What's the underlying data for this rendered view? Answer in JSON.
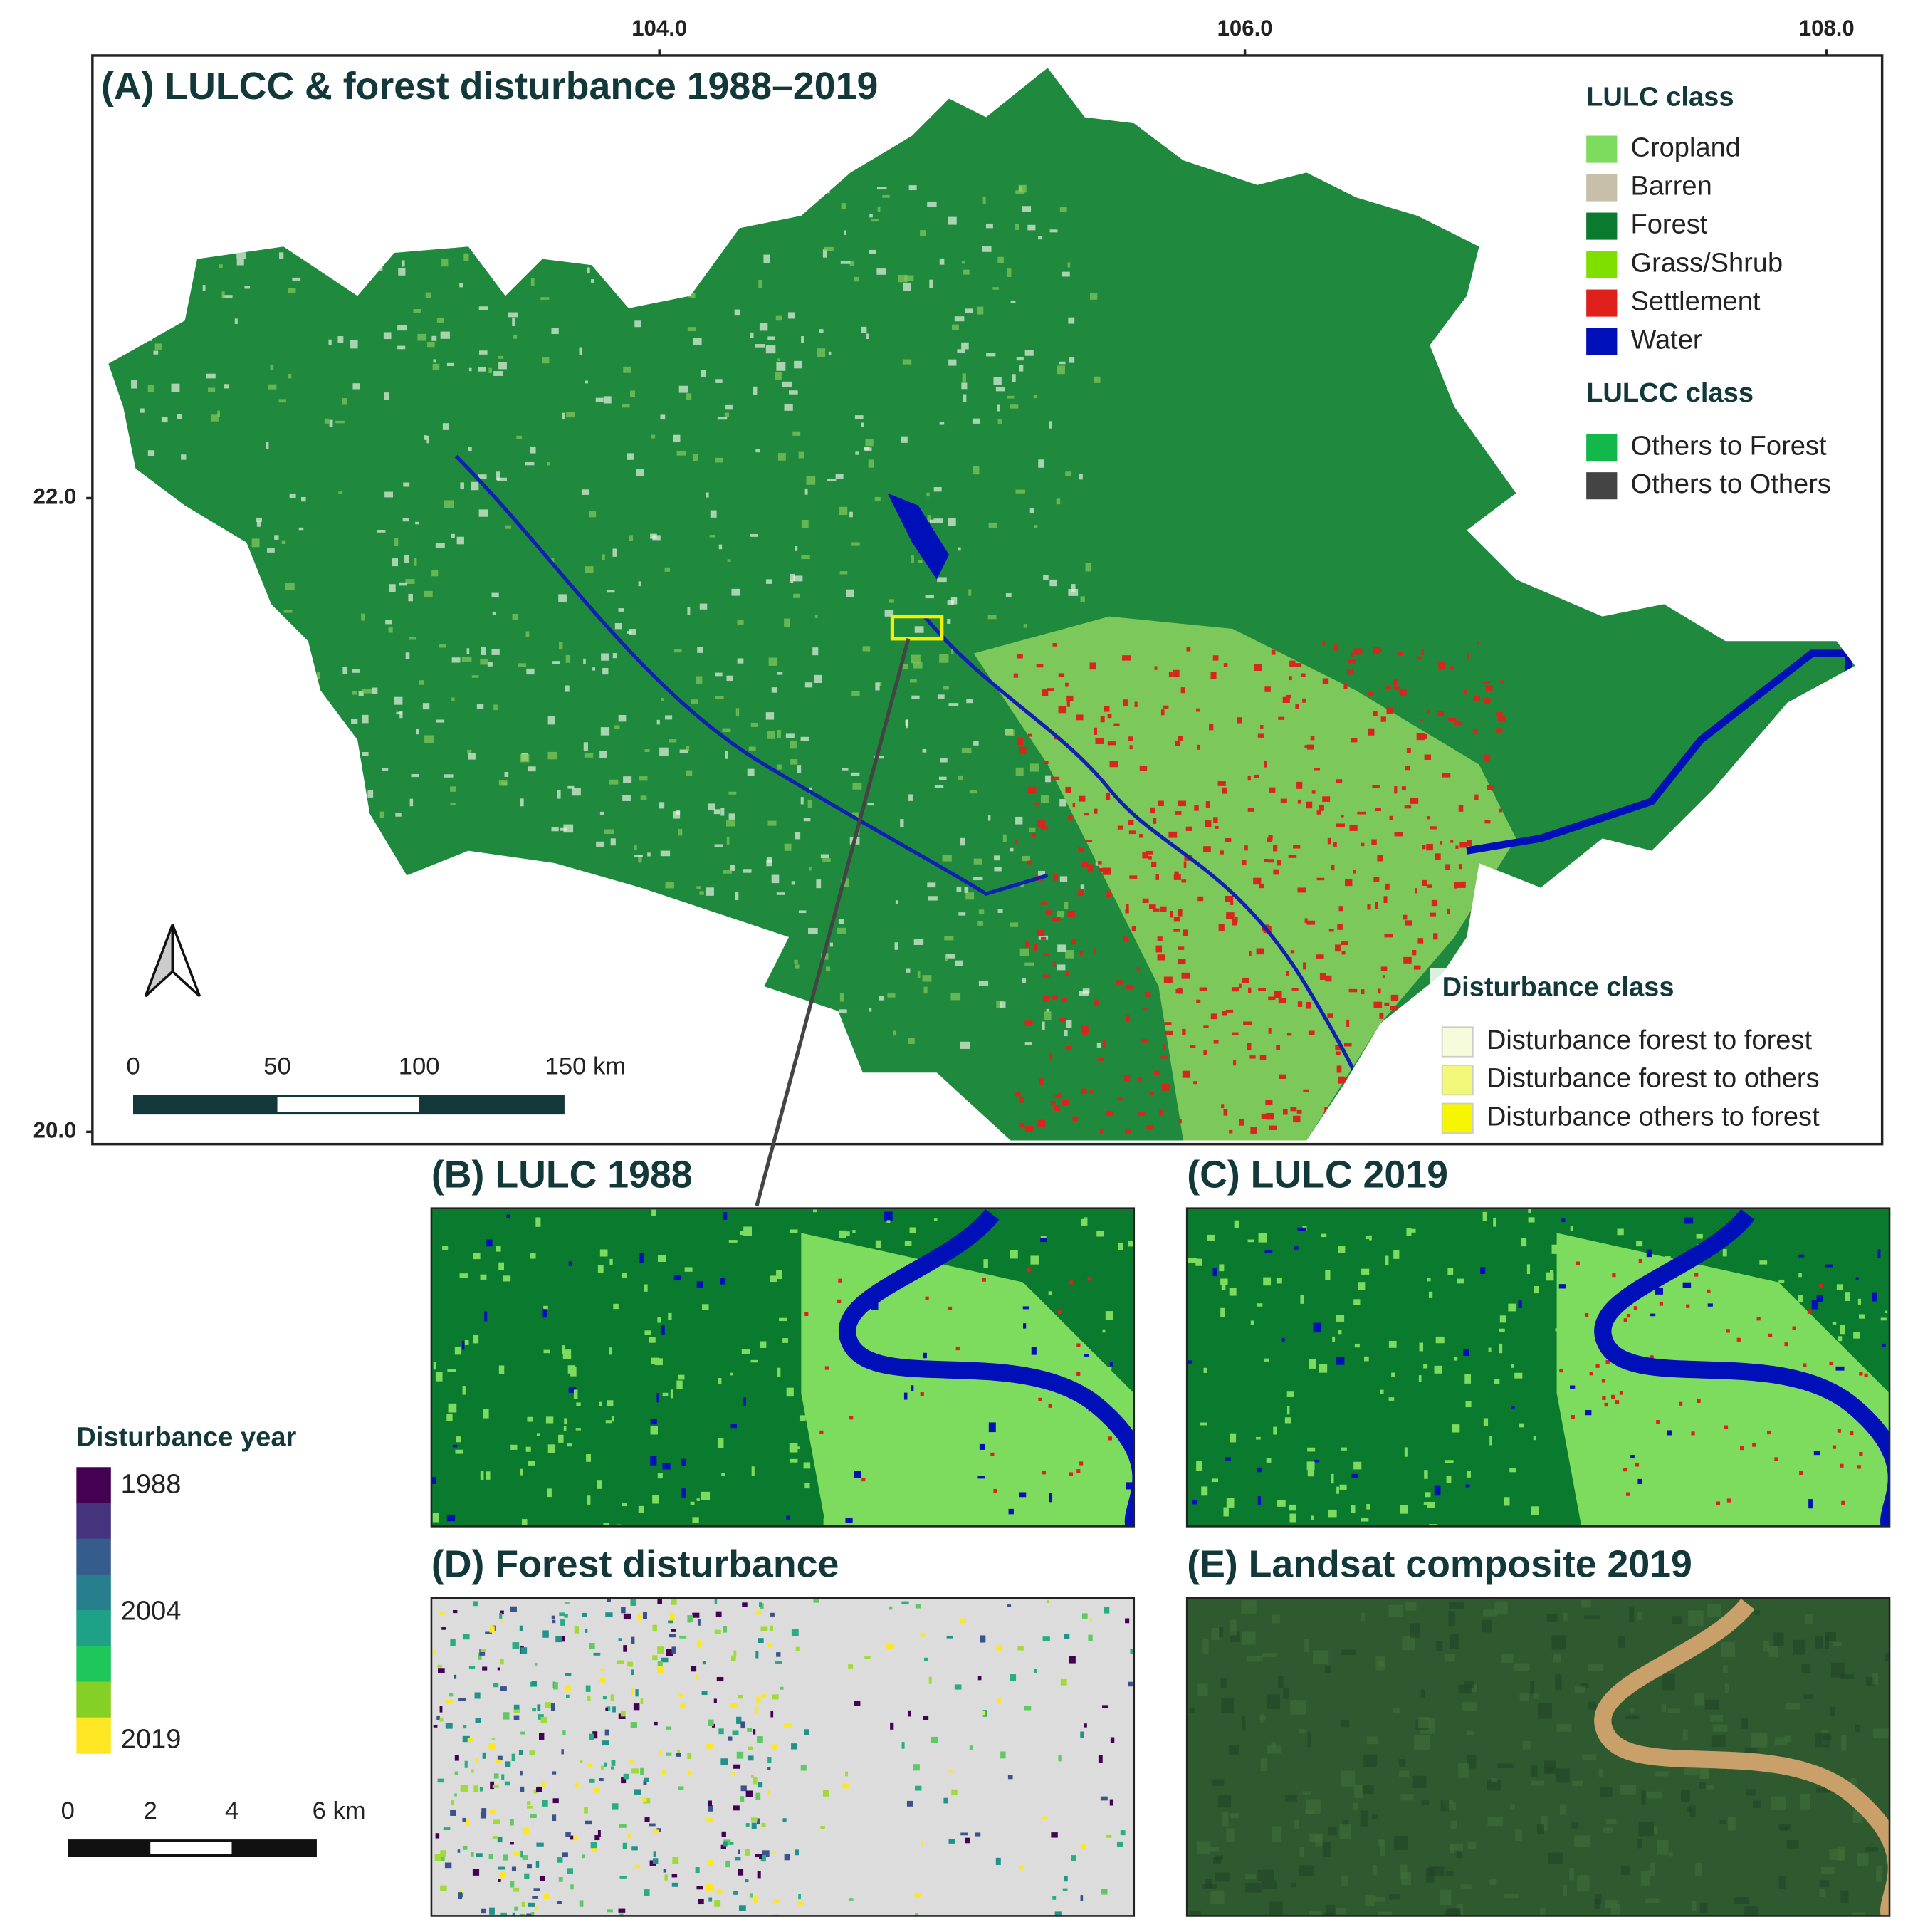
{
  "panel_a": {
    "title": "(A) LULCC & forest disturbance 1988–2019",
    "x_ticks": [
      "104.0",
      "106.0",
      "108.0"
    ],
    "y_ticks": [
      "22.0",
      "20.0"
    ],
    "legend": {
      "lulc_title": "LULC class",
      "lulc_items": [
        {
          "label": "Cropland",
          "color": "#7ddc5e"
        },
        {
          "label": "Barren",
          "color": "#c7bfa8"
        },
        {
          "label": "Forest",
          "color": "#0a7a2e"
        },
        {
          "label": "Grass/Shrub",
          "color": "#7fe000"
        },
        {
          "label": "Settlement",
          "color": "#e0201a"
        },
        {
          "label": "Water",
          "color": "#0010b8"
        }
      ],
      "lulcc_title": "LULCC class",
      "lulcc_items": [
        {
          "label": "Others to Forest",
          "color": "#12b84a"
        },
        {
          "label": "Others to Others",
          "color": "#444444"
        }
      ],
      "disturbance_title": "Disturbance class",
      "disturbance_items": [
        {
          "label": "Disturbance forest to forest",
          "color": "#f6fbdc"
        },
        {
          "label": "Disturbance forest to others",
          "color": "#f2f87a"
        },
        {
          "label": "Disturbance others to forest",
          "color": "#f6f600"
        }
      ]
    },
    "scale_bar": [
      "0",
      "50",
      "100",
      "150 km"
    ]
  },
  "panels": [
    {
      "title": "(B) LULC 1988"
    },
    {
      "title": "(C) LULC 2019"
    },
    {
      "title": "(D) Forest disturbance"
    },
    {
      "title": "(E) Landsat composite 2019"
    }
  ],
  "disturbance_year_legend": {
    "title": "Disturbance year",
    "labels": [
      "1988",
      "2004",
      "2019"
    ]
  },
  "inset_scale_bar": [
    "0",
    "2",
    "4",
    "6 km"
  ]
}
